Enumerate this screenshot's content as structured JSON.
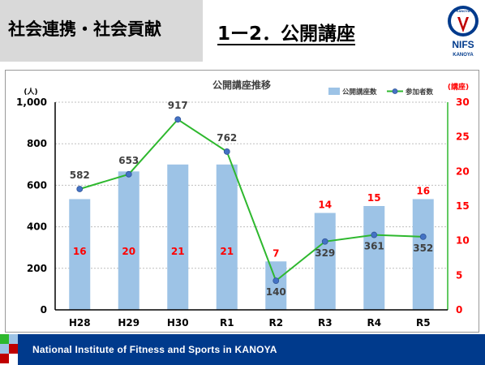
{
  "header": {
    "section_tag": "社会連携・社会貢献",
    "title": "1ー2．公開講座",
    "logo_text": "NIFS",
    "logo_sub": "KANOYA",
    "logo_seal": "KANOYA"
  },
  "footer": {
    "text": "National Institute of Fitness and Sports in KANOYA"
  },
  "colors": {
    "bar": "#9dc3e6",
    "line": "#2eb82e",
    "marker": "#4472c4",
    "right_axis": "#ff0000",
    "footer_bg": "#003a8c"
  },
  "chart_data": {
    "type": "bar",
    "title": "公開講座推移",
    "categories": [
      "H28",
      "H29",
      "H30",
      "R1",
      "R2",
      "R3",
      "R4",
      "R5"
    ],
    "left_axis": {
      "unit_label": "(人)",
      "ylim": [
        0,
        1000
      ],
      "ticks": [
        "0",
        "200",
        "400",
        "600",
        "800",
        "1,000"
      ]
    },
    "right_axis": {
      "unit_label": "(講座)",
      "ylim": [
        0,
        30
      ],
      "ticks": [
        "0",
        "5",
        "10",
        "15",
        "20",
        "25",
        "30"
      ]
    },
    "series": [
      {
        "name": "公開講座数",
        "type": "bar",
        "axis": "right",
        "values": [
          16,
          20,
          21,
          21,
          7,
          14,
          15,
          16
        ]
      },
      {
        "name": "参加者数",
        "type": "line",
        "axis": "left",
        "values": [
          582,
          653,
          917,
          762,
          140,
          329,
          361,
          352
        ]
      }
    ],
    "legend_position": "top-right",
    "grid": true
  }
}
